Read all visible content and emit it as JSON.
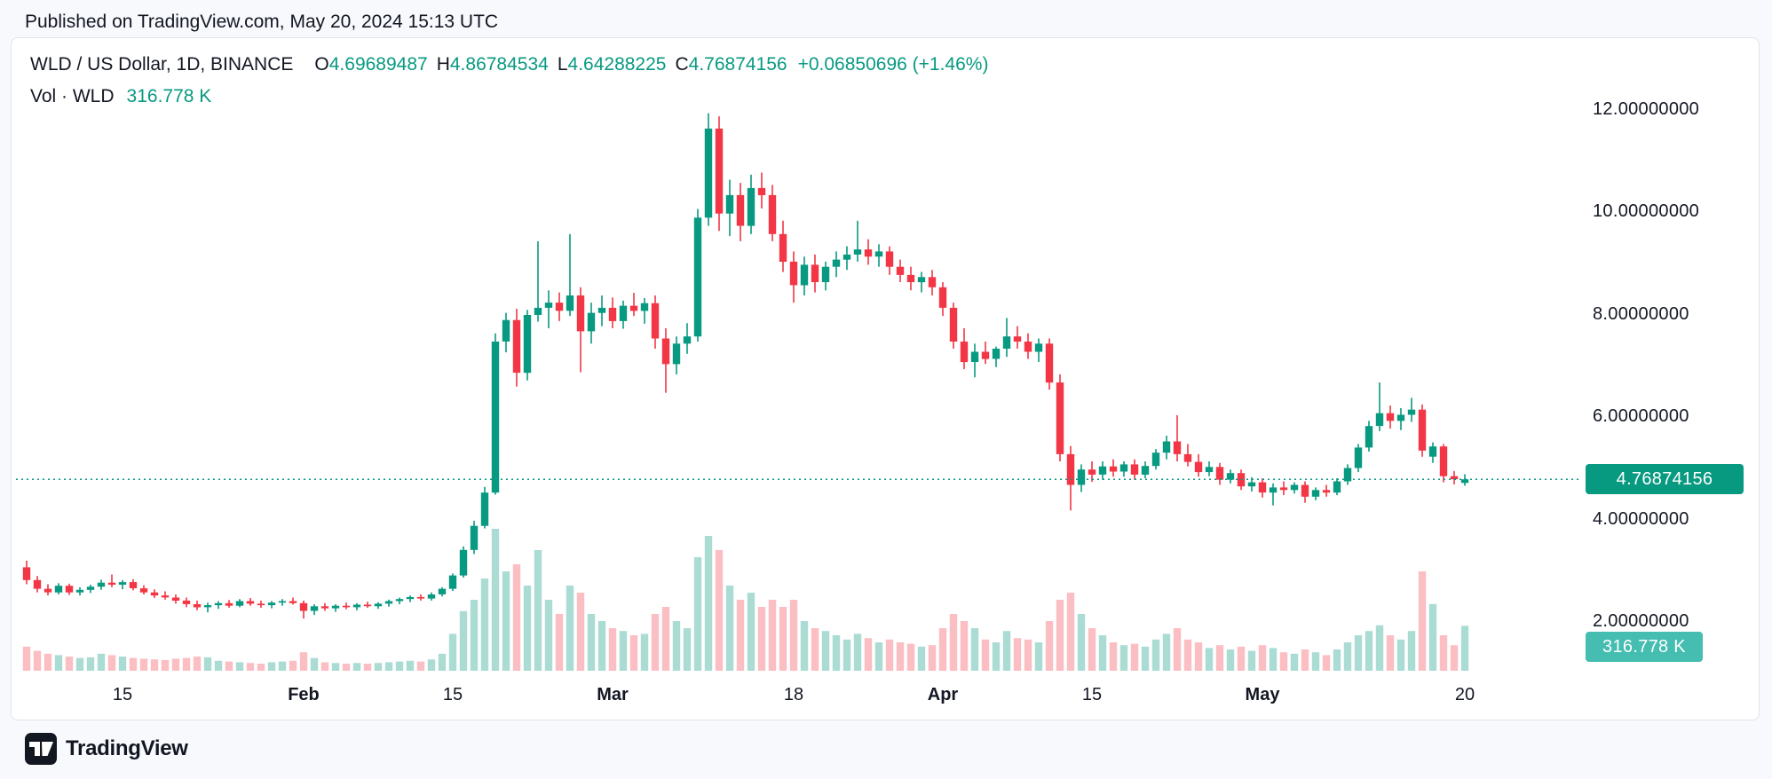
{
  "page": {
    "published_line": "Published on TradingView.com, May 20, 2024 15:13 UTC",
    "footer_brand": "TradingView"
  },
  "legend": {
    "symbol": "WLD / US Dollar, 1D, BINANCE",
    "o_label": "O",
    "o": "4.69689487",
    "h_label": "H",
    "h": "4.86784534",
    "l_label": "L",
    "l": "4.64288225",
    "c_label": "C",
    "c": "4.76874156",
    "change": "+0.06850696 (+1.46%)",
    "vol_label": "Vol · WLD",
    "vol_value": "316.778 K"
  },
  "badges": {
    "price": "4.76874156",
    "volume": "316.778 K"
  },
  "axes": {
    "price_ticks": [
      "12.00000000",
      "10.00000000",
      "8.00000000",
      "6.00000000",
      "4.00000000",
      "2.00000000"
    ],
    "time_ticks": [
      {
        "label": "15",
        "day": 9,
        "bold": false
      },
      {
        "label": "Feb",
        "day": 26,
        "bold": true
      },
      {
        "label": "15",
        "day": 40,
        "bold": false
      },
      {
        "label": "Mar",
        "day": 55,
        "bold": true
      },
      {
        "label": "18",
        "day": 72,
        "bold": false
      },
      {
        "label": "Apr",
        "day": 86,
        "bold": true
      },
      {
        "label": "15",
        "day": 100,
        "bold": false
      },
      {
        "label": "May",
        "day": 116,
        "bold": true
      },
      {
        "label": "20",
        "day": 135,
        "bold": false
      }
    ]
  },
  "colors": {
    "up": "#089981",
    "down": "#f23645",
    "vol_up": "rgba(8,153,129,0.34)",
    "vol_down": "rgba(242,54,69,0.32)",
    "price_line": "#089981",
    "price_badge_bg": "#089981",
    "volume_badge_bg": "#45bdb1",
    "text": "#131722"
  },
  "chart_data": {
    "type": "candlestick+volume",
    "title": "WLD / US Dollar, 1D, BINANCE",
    "symbol": "WLD/USD",
    "interval": "1D",
    "exchange": "BINANCE",
    "start_date": "2024-01-06",
    "end_date": "2024-05-20",
    "last": {
      "open": 4.69689487,
      "high": 4.86784534,
      "low": 4.64288225,
      "close": 4.76874156,
      "change": "+0.06850696",
      "change_pct": "+1.46%",
      "volume_display": "316.778 K"
    },
    "y_axis": {
      "ticks": [
        12,
        10,
        8,
        6,
        4,
        2
      ],
      "unit": "USD",
      "grid": false,
      "position": "right"
    },
    "x_axis": {
      "ticks": [
        "15",
        "Feb",
        "15",
        "Mar",
        "18",
        "Apr",
        "15",
        "May",
        "20"
      ]
    },
    "volume_unit": "K",
    "candles_format": [
      "open",
      "high",
      "low",
      "close",
      "volume_K"
    ],
    "candles": [
      [
        3.05,
        3.18,
        2.72,
        2.8,
        170
      ],
      [
        2.8,
        2.88,
        2.56,
        2.63,
        140
      ],
      [
        2.63,
        2.72,
        2.5,
        2.56,
        120
      ],
      [
        2.56,
        2.74,
        2.52,
        2.69,
        110
      ],
      [
        2.69,
        2.73,
        2.51,
        2.56,
        100
      ],
      [
        2.56,
        2.66,
        2.5,
        2.61,
        90
      ],
      [
        2.61,
        2.71,
        2.55,
        2.67,
        95
      ],
      [
        2.67,
        2.81,
        2.61,
        2.75,
        120
      ],
      [
        2.75,
        2.91,
        2.66,
        2.71,
        110
      ],
      [
        2.71,
        2.8,
        2.62,
        2.76,
        100
      ],
      [
        2.76,
        2.82,
        2.6,
        2.64,
        90
      ],
      [
        2.64,
        2.7,
        2.52,
        2.56,
        85
      ],
      [
        2.56,
        2.62,
        2.45,
        2.5,
        80
      ],
      [
        2.5,
        2.58,
        2.42,
        2.46,
        75
      ],
      [
        2.46,
        2.52,
        2.34,
        2.4,
        85
      ],
      [
        2.4,
        2.46,
        2.27,
        2.33,
        90
      ],
      [
        2.33,
        2.4,
        2.21,
        2.27,
        100
      ],
      [
        2.27,
        2.36,
        2.17,
        2.31,
        95
      ],
      [
        2.31,
        2.39,
        2.24,
        2.35,
        70
      ],
      [
        2.35,
        2.41,
        2.26,
        2.3,
        65
      ],
      [
        2.3,
        2.43,
        2.27,
        2.39,
        60
      ],
      [
        2.39,
        2.45,
        2.3,
        2.34,
        55
      ],
      [
        2.34,
        2.4,
        2.26,
        2.31,
        50
      ],
      [
        2.31,
        2.39,
        2.25,
        2.36,
        60
      ],
      [
        2.36,
        2.43,
        2.3,
        2.39,
        65
      ],
      [
        2.39,
        2.46,
        2.32,
        2.35,
        70
      ],
      [
        2.35,
        2.4,
        2.05,
        2.2,
        130
      ],
      [
        2.2,
        2.33,
        2.12,
        2.29,
        90
      ],
      [
        2.29,
        2.35,
        2.2,
        2.25,
        60
      ],
      [
        2.25,
        2.33,
        2.18,
        2.3,
        55
      ],
      [
        2.3,
        2.36,
        2.23,
        2.27,
        50
      ],
      [
        2.27,
        2.35,
        2.21,
        2.32,
        55
      ],
      [
        2.32,
        2.38,
        2.26,
        2.29,
        50
      ],
      [
        2.29,
        2.37,
        2.24,
        2.34,
        55
      ],
      [
        2.34,
        2.42,
        2.28,
        2.39,
        60
      ],
      [
        2.39,
        2.46,
        2.33,
        2.43,
        65
      ],
      [
        2.43,
        2.5,
        2.37,
        2.47,
        70
      ],
      [
        2.47,
        2.52,
        2.4,
        2.44,
        65
      ],
      [
        2.44,
        2.56,
        2.4,
        2.52,
        80
      ],
      [
        2.52,
        2.66,
        2.48,
        2.63,
        120
      ],
      [
        2.63,
        2.93,
        2.59,
        2.89,
        260
      ],
      [
        2.89,
        3.46,
        2.85,
        3.39,
        420
      ],
      [
        3.39,
        3.96,
        3.31,
        3.86,
        500
      ],
      [
        3.86,
        4.62,
        3.81,
        4.51,
        650
      ],
      [
        4.51,
        7.62,
        4.47,
        7.46,
        1000
      ],
      [
        7.46,
        8.02,
        7.25,
        7.88,
        700
      ],
      [
        7.88,
        8.1,
        6.58,
        6.85,
        750
      ],
      [
        6.85,
        8.08,
        6.7,
        7.98,
        600
      ],
      [
        7.98,
        9.42,
        7.85,
        8.12,
        850
      ],
      [
        8.12,
        8.46,
        7.72,
        8.22,
        500
      ],
      [
        8.22,
        8.42,
        7.86,
        8.06,
        400
      ],
      [
        8.06,
        9.56,
        7.96,
        8.36,
        600
      ],
      [
        8.36,
        8.52,
        6.86,
        7.66,
        550
      ],
      [
        7.66,
        8.22,
        7.42,
        8.02,
        400
      ],
      [
        8.02,
        8.36,
        7.76,
        8.12,
        350
      ],
      [
        8.12,
        8.32,
        7.72,
        7.86,
        300
      ],
      [
        7.86,
        8.26,
        7.71,
        8.16,
        280
      ],
      [
        8.16,
        8.41,
        7.96,
        8.06,
        250
      ],
      [
        8.06,
        8.31,
        7.81,
        8.21,
        260
      ],
      [
        8.21,
        8.36,
        7.32,
        7.52,
        400
      ],
      [
        7.52,
        7.72,
        6.46,
        7.02,
        450
      ],
      [
        7.02,
        7.56,
        6.82,
        7.42,
        350
      ],
      [
        7.42,
        7.82,
        7.22,
        7.56,
        300
      ],
      [
        7.56,
        10.05,
        7.46,
        9.88,
        800
      ],
      [
        9.88,
        11.92,
        9.72,
        11.62,
        950
      ],
      [
        11.62,
        11.86,
        9.62,
        9.96,
        850
      ],
      [
        9.96,
        10.62,
        9.52,
        10.32,
        600
      ],
      [
        10.32,
        10.56,
        9.42,
        9.72,
        500
      ],
      [
        9.72,
        10.72,
        9.56,
        10.46,
        550
      ],
      [
        10.46,
        10.76,
        10.06,
        10.32,
        450
      ],
      [
        10.32,
        10.52,
        9.42,
        9.56,
        500
      ],
      [
        9.56,
        9.82,
        8.82,
        9.02,
        450
      ],
      [
        9.02,
        9.22,
        8.22,
        8.56,
        500
      ],
      [
        8.56,
        9.12,
        8.36,
        8.96,
        350
      ],
      [
        8.96,
        9.16,
        8.42,
        8.62,
        300
      ],
      [
        8.62,
        9.02,
        8.46,
        8.92,
        280
      ],
      [
        8.92,
        9.22,
        8.72,
        9.06,
        250
      ],
      [
        9.06,
        9.32,
        8.86,
        9.16,
        220
      ],
      [
        9.16,
        9.82,
        9.02,
        9.26,
        260
      ],
      [
        9.26,
        9.46,
        8.96,
        9.12,
        230
      ],
      [
        9.12,
        9.36,
        8.92,
        9.22,
        200
      ],
      [
        9.22,
        9.32,
        8.76,
        8.92,
        220
      ],
      [
        8.92,
        9.06,
        8.62,
        8.76,
        200
      ],
      [
        8.76,
        8.92,
        8.46,
        8.62,
        190
      ],
      [
        8.62,
        8.82,
        8.42,
        8.72,
        170
      ],
      [
        8.72,
        8.86,
        8.36,
        8.52,
        180
      ],
      [
        8.52,
        8.62,
        7.96,
        8.12,
        300
      ],
      [
        8.12,
        8.22,
        7.32,
        7.46,
        400
      ],
      [
        7.46,
        7.72,
        6.92,
        7.06,
        350
      ],
      [
        7.06,
        7.42,
        6.76,
        7.26,
        300
      ],
      [
        7.26,
        7.46,
        7.02,
        7.12,
        220
      ],
      [
        7.12,
        7.36,
        6.96,
        7.32,
        200
      ],
      [
        7.32,
        7.92,
        7.16,
        7.56,
        280
      ],
      [
        7.56,
        7.76,
        7.32,
        7.46,
        230
      ],
      [
        7.46,
        7.62,
        7.12,
        7.26,
        220
      ],
      [
        7.26,
        7.52,
        7.06,
        7.42,
        200
      ],
      [
        7.42,
        7.52,
        6.52,
        6.66,
        350
      ],
      [
        6.66,
        6.82,
        5.12,
        5.26,
        500
      ],
      [
        5.26,
        5.42,
        4.16,
        4.66,
        550
      ],
      [
        4.66,
        5.06,
        4.52,
        4.96,
        400
      ],
      [
        4.96,
        5.12,
        4.72,
        4.86,
        300
      ],
      [
        4.86,
        5.12,
        4.76,
        5.02,
        250
      ],
      [
        5.02,
        5.16,
        4.82,
        4.92,
        200
      ],
      [
        4.92,
        5.12,
        4.82,
        5.06,
        180
      ],
      [
        5.06,
        5.16,
        4.76,
        4.86,
        190
      ],
      [
        4.86,
        5.12,
        4.79,
        5.03,
        170
      ],
      [
        5.03,
        5.36,
        4.96,
        5.29,
        220
      ],
      [
        5.29,
        5.62,
        5.16,
        5.51,
        260
      ],
      [
        5.51,
        6.02,
        5.12,
        5.26,
        300
      ],
      [
        5.26,
        5.46,
        5.02,
        5.11,
        220
      ],
      [
        5.11,
        5.26,
        4.82,
        4.91,
        200
      ],
      [
        4.91,
        5.12,
        4.83,
        5.01,
        160
      ],
      [
        5.01,
        5.09,
        4.66,
        4.76,
        180
      ],
      [
        4.76,
        4.96,
        4.69,
        4.89,
        150
      ],
      [
        4.89,
        4.96,
        4.56,
        4.63,
        170
      ],
      [
        4.63,
        4.81,
        4.53,
        4.71,
        140
      ],
      [
        4.71,
        4.79,
        4.41,
        4.51,
        180
      ],
      [
        4.51,
        4.69,
        4.26,
        4.61,
        160
      ],
      [
        4.61,
        4.73,
        4.46,
        4.56,
        130
      ],
      [
        4.56,
        4.71,
        4.49,
        4.66,
        120
      ],
      [
        4.66,
        4.73,
        4.31,
        4.43,
        150
      ],
      [
        4.43,
        4.61,
        4.36,
        4.56,
        130
      ],
      [
        4.56,
        4.66,
        4.43,
        4.51,
        110
      ],
      [
        4.51,
        4.79,
        4.46,
        4.73,
        150
      ],
      [
        4.73,
        5.06,
        4.66,
        4.99,
        200
      ],
      [
        4.99,
        5.46,
        4.91,
        5.39,
        250
      ],
      [
        5.39,
        5.91,
        5.31,
        5.81,
        280
      ],
      [
        5.81,
        6.66,
        5.71,
        6.06,
        320
      ],
      [
        6.06,
        6.21,
        5.76,
        5.91,
        250
      ],
      [
        5.91,
        6.16,
        5.73,
        6.03,
        220
      ],
      [
        6.03,
        6.36,
        5.89,
        6.13,
        280
      ],
      [
        6.13,
        6.23,
        5.21,
        5.33,
        700
      ],
      [
        5.21,
        5.49,
        5.09,
        5.41,
        470
      ],
      [
        5.41,
        5.46,
        4.71,
        4.83,
        250
      ],
      [
        4.83,
        4.93,
        4.67,
        4.77,
        180
      ],
      [
        4.69689487,
        4.86784534,
        4.64288225,
        4.76874156,
        316.778
      ]
    ]
  }
}
